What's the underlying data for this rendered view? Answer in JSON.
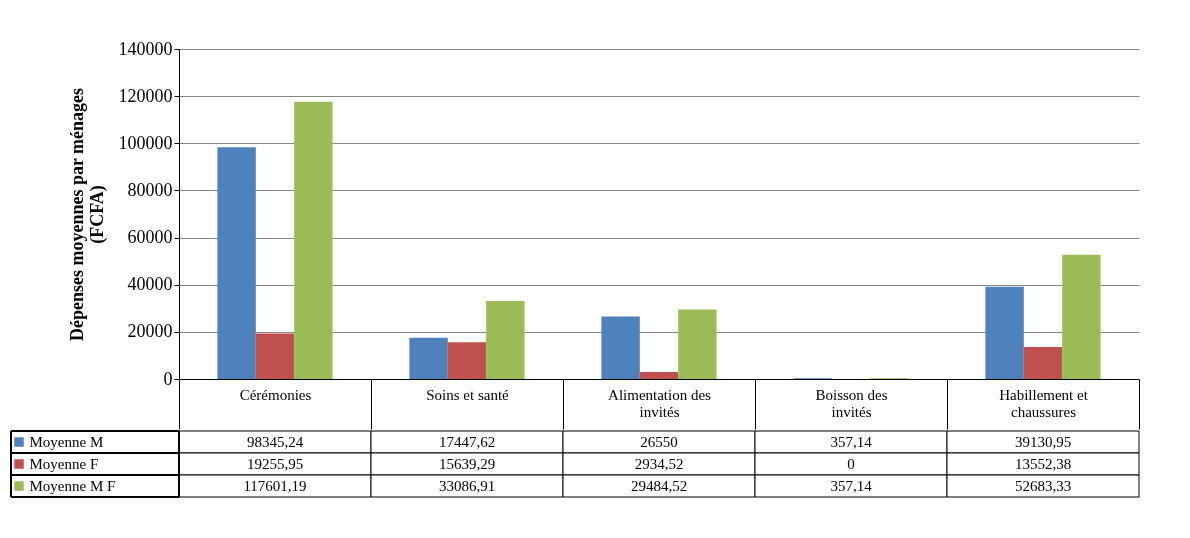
{
  "chart_data": {
    "type": "bar",
    "ylabel": "Dépenses moyennes par ménages (FCFA)",
    "categories": [
      "Cérémonies",
      "Soins et santé",
      "Alimentation des invités",
      "Boisson des invités",
      "Habillement et chaussures"
    ],
    "series": [
      {
        "name": "Moyenne M",
        "color": "#4f81bd",
        "values": [
          98345.24,
          17447.62,
          26550,
          357.14,
          39130.95
        ],
        "value_labels": [
          "98345,24",
          "17447,62",
          "26550",
          "357,14",
          "39130,95"
        ]
      },
      {
        "name": "Moyenne F",
        "color": "#c0504d",
        "values": [
          19255.95,
          15639.29,
          2934.52,
          0,
          13552.38
        ],
        "value_labels": [
          "19255,95",
          "15639,29",
          "2934,52",
          "0",
          "13552,38"
        ]
      },
      {
        "name": "Moyenne M F",
        "color": "#9bbb59",
        "values": [
          117601.19,
          33086.91,
          29484.52,
          357.14,
          52683.33
        ],
        "value_labels": [
          "117601,19",
          "33086,91",
          "29484,52",
          "357,14",
          "52683,33"
        ]
      }
    ],
    "ylim": [
      0,
      140000
    ],
    "yticks": [
      0,
      20000,
      40000,
      60000,
      80000,
      100000,
      120000,
      140000
    ],
    "grid": "y",
    "legend": "bottom"
  }
}
